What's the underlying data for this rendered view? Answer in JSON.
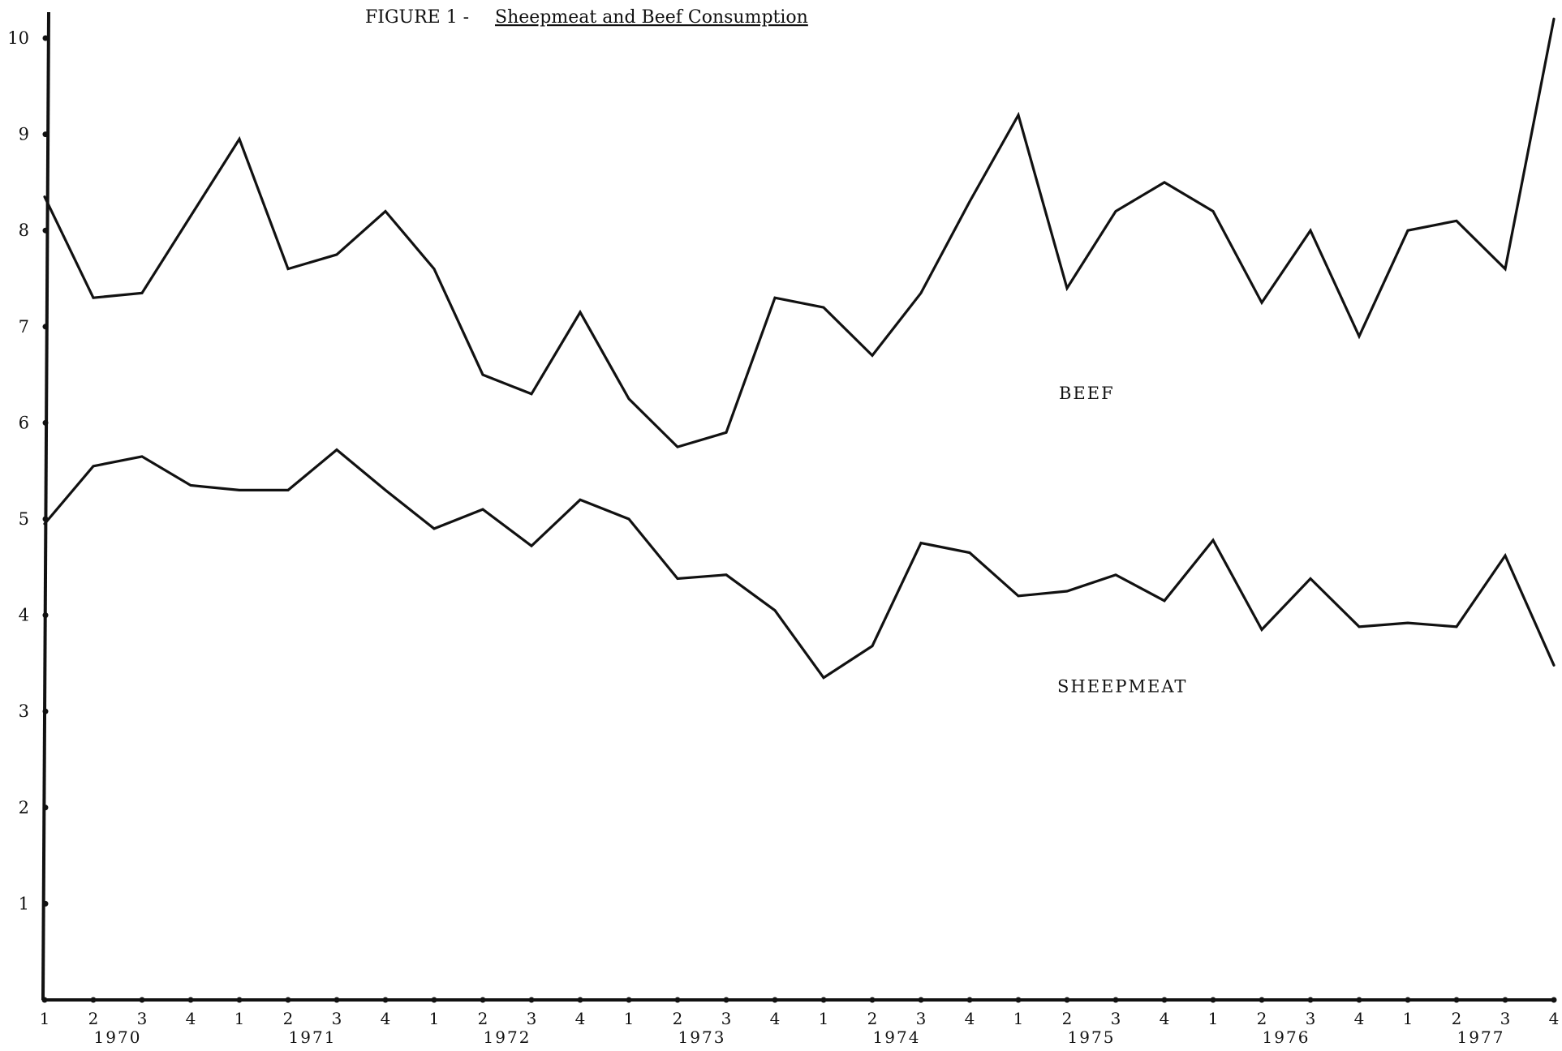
{
  "chart_data": {
    "type": "line",
    "title_prefix": "FIGURE 1 - ",
    "title": "Sheepmeat and Beef Consumption",
    "xlabel": "",
    "ylabel": "",
    "ylim": [
      0,
      10
    ],
    "y_ticks": [
      "1",
      "2",
      "3",
      "4",
      "5",
      "6",
      "7",
      "8",
      "9",
      "10"
    ],
    "grid": false,
    "legend": "none",
    "x": [
      "1970 Q1",
      "1970 Q2",
      "1970 Q3",
      "1970 Q4",
      "1971 Q1",
      "1971 Q2",
      "1971 Q3",
      "1971 Q4",
      "1972 Q1",
      "1972 Q2",
      "1972 Q3",
      "1972 Q4",
      "1973 Q1",
      "1973 Q2",
      "1973 Q3",
      "1973 Q4",
      "1974 Q1",
      "1974 Q2",
      "1974 Q3",
      "1974 Q4",
      "1975 Q1",
      "1975 Q2",
      "1975 Q3",
      "1975 Q4",
      "1976 Q1",
      "1976 Q2",
      "1976 Q3",
      "1976 Q4",
      "1977 Q1",
      "1977 Q2",
      "1977 Q3",
      "1977 Q4"
    ],
    "quarter_labels": [
      "1",
      "2",
      "3",
      "4",
      "1",
      "2",
      "3",
      "4",
      "1",
      "2",
      "3",
      "4",
      "1",
      "2",
      "3",
      "4",
      "1",
      "2",
      "3",
      "4",
      "1",
      "2",
      "3",
      "4",
      "1",
      "2",
      "3",
      "4",
      "1",
      "2",
      "3",
      "4"
    ],
    "years": [
      "1970",
      "1971",
      "1972",
      "1973",
      "1974",
      "1975",
      "1976",
      "1977"
    ],
    "series": [
      {
        "name": "BEEF",
        "values": [
          8.35,
          7.3,
          7.35,
          8.15,
          8.95,
          7.6,
          7.75,
          8.2,
          7.6,
          6.5,
          6.3,
          7.15,
          6.25,
          5.75,
          5.9,
          7.3,
          7.2,
          6.7,
          7.35,
          8.3,
          9.2,
          7.4,
          8.2,
          8.5,
          8.2,
          7.25,
          8.0,
          6.9,
          8.0,
          8.1,
          7.6,
          10.2
        ]
      },
      {
        "name": "SHEEPMEAT",
        "values": [
          4.95,
          5.55,
          5.65,
          5.35,
          5.3,
          5.3,
          5.72,
          5.3,
          4.9,
          5.1,
          4.72,
          5.2,
          5.0,
          4.38,
          4.42,
          4.05,
          3.35,
          3.68,
          4.75,
          4.65,
          4.2,
          4.25,
          4.42,
          4.15,
          4.78,
          3.85,
          4.38,
          3.88,
          3.92,
          3.88,
          4.62,
          3.48
        ]
      }
    ]
  }
}
